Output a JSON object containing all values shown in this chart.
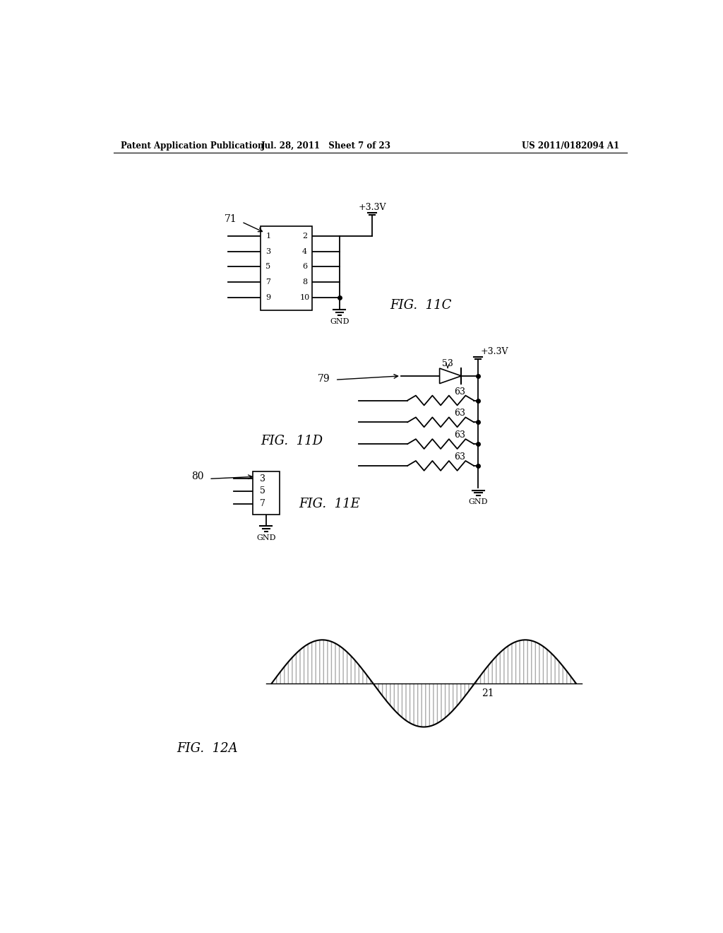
{
  "header_left": "Patent Application Publication",
  "header_mid": "Jul. 28, 2011   Sheet 7 of 23",
  "header_right": "US 2011/0182094 A1",
  "bg_color": "#ffffff",
  "line_color": "#000000",
  "fig11c_label": "FIG.  11C",
  "fig11d_label": "FIG.  11D",
  "fig11e_label": "FIG.  11E",
  "fig12a_label": "FIG.  12A"
}
